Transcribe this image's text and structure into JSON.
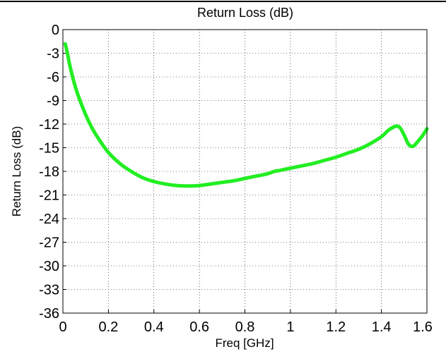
{
  "chart_data": {
    "type": "line",
    "title": "Return Loss (dB)",
    "xlabel": "Freq [GHz]",
    "ylabel": "Return Loss (dB)",
    "xlim": [
      0,
      1.6
    ],
    "ylim": [
      -36,
      0
    ],
    "xticks": [
      0,
      0.2,
      0.4,
      0.6,
      0.8,
      1.0,
      1.2,
      1.4,
      1.6
    ],
    "xtick_labels": [
      "0",
      "0.2",
      "0.4",
      "0.6",
      "0.8",
      "1",
      "1.2",
      "1.4",
      "1.6"
    ],
    "yticks": [
      0,
      -3,
      -6,
      -9,
      -12,
      -15,
      -18,
      -21,
      -24,
      -27,
      -30,
      -33,
      -36
    ],
    "ytick_labels": [
      "0",
      "-3",
      "-6",
      "-9",
      "-12",
      "-15",
      "-18",
      "-21",
      "-24",
      "-27",
      "-30",
      "-33",
      "-36"
    ],
    "grid": true,
    "line_color": "#22ee22",
    "series": [
      {
        "x": [
          0.01,
          0.02,
          0.03,
          0.05,
          0.07,
          0.1,
          0.13,
          0.16,
          0.2,
          0.25,
          0.3,
          0.35,
          0.4,
          0.45,
          0.5,
          0.55,
          0.6,
          0.65,
          0.7,
          0.75,
          0.8,
          0.85,
          0.9,
          0.93,
          0.95,
          1.0,
          1.05,
          1.1,
          1.15,
          1.2,
          1.25,
          1.3,
          1.35,
          1.4,
          1.43,
          1.46,
          1.48,
          1.5,
          1.52,
          1.54,
          1.56,
          1.58,
          1.6
        ],
        "y": [
          -1.8,
          -3.0,
          -4.5,
          -6.8,
          -8.6,
          -10.8,
          -12.6,
          -14.0,
          -15.6,
          -17.0,
          -18.0,
          -18.8,
          -19.3,
          -19.6,
          -19.8,
          -19.85,
          -19.8,
          -19.6,
          -19.4,
          -19.2,
          -18.9,
          -18.6,
          -18.3,
          -18.0,
          -17.9,
          -17.6,
          -17.3,
          -17.0,
          -16.6,
          -16.2,
          -15.7,
          -15.2,
          -14.5,
          -13.6,
          -12.8,
          -12.3,
          -12.4,
          -13.4,
          -14.6,
          -14.8,
          -14.2,
          -13.5,
          -12.6
        ]
      }
    ]
  }
}
